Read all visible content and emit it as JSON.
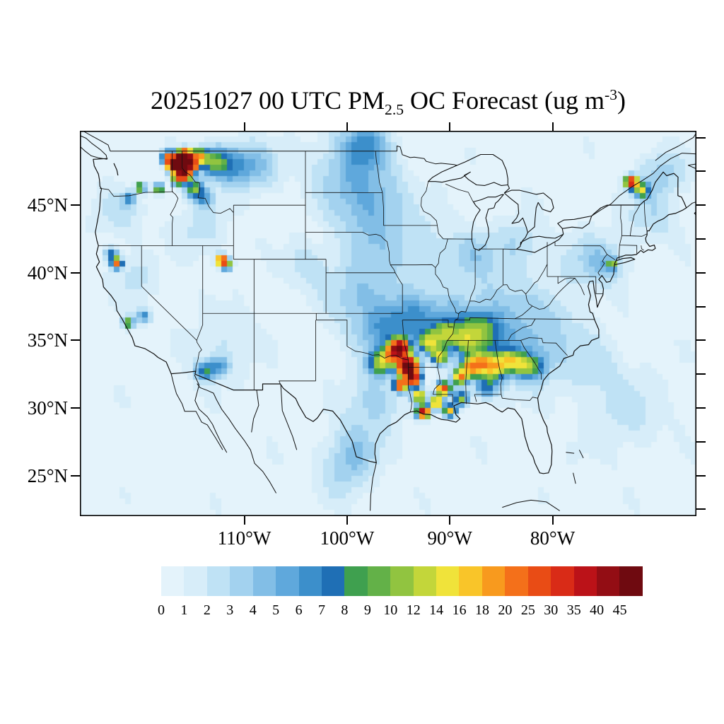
{
  "title": {
    "prefix": "20251027 00 UTC PM",
    "subscript": "2.5",
    "middle": " OC Forecast (ug m",
    "superscript": "-3",
    "suffix": ")"
  },
  "chart_data": {
    "type": "heatmap",
    "title": "20251027 00 UTC PM2.5 OC Forecast (ug m-3)",
    "variable": "PM2.5 OC",
    "units": "ug m-3",
    "domain": {
      "lon_min": -126,
      "lon_max": -66,
      "lat_min": 22,
      "lat_max": 50.5
    },
    "xticks": [
      {
        "label": "110°W",
        "lon": -110
      },
      {
        "label": "100°W",
        "lon": -100
      },
      {
        "label": "90°W",
        "lon": -90
      },
      {
        "label": "80°W",
        "lon": -80
      }
    ],
    "yticks": [
      {
        "label": "45°N",
        "lat": 45
      },
      {
        "label": "40°N",
        "lat": 40
      },
      {
        "label": "35°N",
        "lat": 35
      },
      {
        "label": "30°N",
        "lat": 30
      },
      {
        "label": "25°N",
        "lat": 25
      }
    ],
    "right_tick_lats": [
      50,
      47.5,
      45,
      42.5,
      40,
      37.5,
      35,
      32.5,
      30,
      27.5,
      25,
      22.5
    ],
    "colorbar": {
      "levels": [
        0,
        1,
        2,
        3,
        4,
        5,
        6,
        7,
        8,
        9,
        10,
        12,
        14,
        16,
        18,
        20,
        25,
        30,
        35,
        40,
        45
      ],
      "colors": [
        "#e4f3fb",
        "#d7edf9",
        "#bfe2f5",
        "#a3d2ef",
        "#82bee6",
        "#5fa8dc",
        "#3c8fcb",
        "#1f6fb5",
        "#3fa04f",
        "#63b148",
        "#91c440",
        "#c3d63a",
        "#f0e33a",
        "#f9c529",
        "#f89a1e",
        "#f4701a",
        "#e94c15",
        "#d92b17",
        "#bb1218",
        "#930d14",
        "#6f0a10"
      ]
    },
    "source_format": "[lon_deg, lat_deg, peak_ug_m3, sigma_deg]",
    "background_level": 0.55,
    "plumes": [
      [
        -100.0,
        47.5,
        3.0,
        2.0
      ],
      [
        -98.3,
        49.5,
        4.5,
        1.2
      ],
      [
        -97.3,
        45.5,
        2.6,
        1.8
      ],
      [
        -97.5,
        43.0,
        2.2,
        2.0
      ],
      [
        -98.5,
        38.5,
        3.0,
        2.0
      ],
      [
        -96.2,
        35.6,
        4.2,
        1.6
      ],
      [
        -93.2,
        36.6,
        4.0,
        1.4
      ],
      [
        -97.2,
        30.6,
        3.0,
        1.5
      ],
      [
        -99.2,
        27.2,
        2.6,
        1.4
      ],
      [
        -100.2,
        25.2,
        2.4,
        1.4
      ],
      [
        -89.2,
        36.2,
        4.0,
        1.4
      ],
      [
        -86.2,
        34.2,
        3.8,
        1.6
      ],
      [
        -82.4,
        33.6,
        3.0,
        1.6
      ],
      [
        -85.2,
        37.6,
        2.6,
        1.8
      ],
      [
        -80.2,
        36.2,
        2.2,
        1.8
      ],
      [
        -76.4,
        40.8,
        2.4,
        1.6
      ],
      [
        -70.4,
        44.2,
        2.2,
        1.4
      ],
      [
        -69.3,
        47.4,
        3.0,
        1.2
      ],
      [
        -112.2,
        34.6,
        1.6,
        1.8
      ],
      [
        -120.6,
        39.6,
        2.0,
        1.1
      ],
      [
        -122.2,
        44.4,
        2.0,
        1.3
      ],
      [
        -114.2,
        43.2,
        2.0,
        1.4
      ],
      [
        -104.2,
        40.6,
        2.0,
        1.1
      ],
      [
        -92.2,
        41.6,
        2.2,
        1.6
      ],
      [
        -87.6,
        41.2,
        2.6,
        1.3
      ],
      [
        -83.2,
        42.2,
        2.4,
        1.3
      ],
      [
        -74.6,
        40.6,
        2.4,
        0.9
      ],
      [
        -73.2,
        29.8,
        1.8,
        2.2
      ],
      [
        -76.2,
        33.2,
        1.6,
        1.6
      ]
    ],
    "hotspots": [
      [
        -116.3,
        48.2,
        55,
        0.35
      ],
      [
        -115.7,
        48.55,
        48,
        0.35
      ],
      [
        -116.9,
        47.9,
        42,
        0.3
      ],
      [
        -115.9,
        47.4,
        50,
        0.35
      ],
      [
        -115.1,
        48.0,
        34,
        0.3
      ],
      [
        -117.4,
        48.5,
        22,
        0.3
      ],
      [
        -114.4,
        48.6,
        16,
        0.35
      ],
      [
        -116.5,
        46.9,
        14,
        0.3
      ],
      [
        -113.2,
        48.2,
        8,
        0.7
      ],
      [
        -111.5,
        48.0,
        5,
        1.0
      ],
      [
        -109.0,
        47.8,
        3.5,
        1.3
      ],
      [
        -114.9,
        46.2,
        9,
        0.45
      ],
      [
        -113.9,
        45.5,
        5,
        0.5
      ],
      [
        -118.3,
        46.2,
        13,
        0.25
      ],
      [
        -120.1,
        46.3,
        14,
        0.22
      ],
      [
        -121.2,
        45.5,
        6,
        0.3
      ],
      [
        -112.2,
        40.9,
        32,
        0.25
      ],
      [
        -111.7,
        40.6,
        14,
        0.25
      ],
      [
        -122.4,
        40.7,
        22,
        0.25
      ],
      [
        -122.9,
        41.4,
        8,
        0.35
      ],
      [
        -121.3,
        36.3,
        11,
        0.28
      ],
      [
        -119.8,
        36.8,
        6,
        0.4
      ],
      [
        -113.9,
        32.7,
        7,
        0.5
      ],
      [
        -112.4,
        33.1,
        5,
        0.5
      ],
      [
        -94.9,
        34.4,
        52,
        0.4
      ],
      [
        -94.1,
        33.1,
        55,
        0.45
      ],
      [
        -93.6,
        32.2,
        40,
        0.35
      ],
      [
        -95.6,
        33.9,
        18,
        0.4
      ],
      [
        -96.8,
        33.3,
        10,
        0.6
      ],
      [
        -94.8,
        31.7,
        26,
        0.3
      ],
      [
        -93.0,
        30.9,
        18,
        0.3
      ],
      [
        -92.6,
        29.7,
        38,
        0.28
      ],
      [
        -91.3,
        30.4,
        22,
        0.3
      ],
      [
        -90.6,
        31.4,
        30,
        0.3
      ],
      [
        -90.0,
        29.8,
        16,
        0.3
      ],
      [
        -89.0,
        32.3,
        20,
        0.35
      ],
      [
        -88.0,
        33.0,
        16,
        0.45
      ],
      [
        -87.0,
        33.3,
        12,
        0.5
      ],
      [
        -85.7,
        33.0,
        12,
        0.55
      ],
      [
        -84.3,
        33.5,
        10,
        0.5
      ],
      [
        -83.0,
        33.2,
        8,
        0.5
      ],
      [
        -81.7,
        33.0,
        5,
        0.6
      ],
      [
        -92.0,
        34.8,
        12,
        0.5
      ],
      [
        -91.0,
        33.8,
        14,
        0.4
      ],
      [
        -88.9,
        30.7,
        10,
        0.4
      ],
      [
        -86.5,
        31.5,
        6,
        0.6
      ],
      [
        -90.5,
        35.5,
        8,
        0.6
      ],
      [
        -88.5,
        35.0,
        7,
        0.7
      ],
      [
        -86.8,
        35.8,
        5,
        0.8
      ],
      [
        -72.3,
        46.7,
        34,
        0.3
      ],
      [
        -71.3,
        46.1,
        12,
        0.35
      ],
      [
        -74.2,
        40.6,
        10,
        0.22
      ]
    ]
  }
}
